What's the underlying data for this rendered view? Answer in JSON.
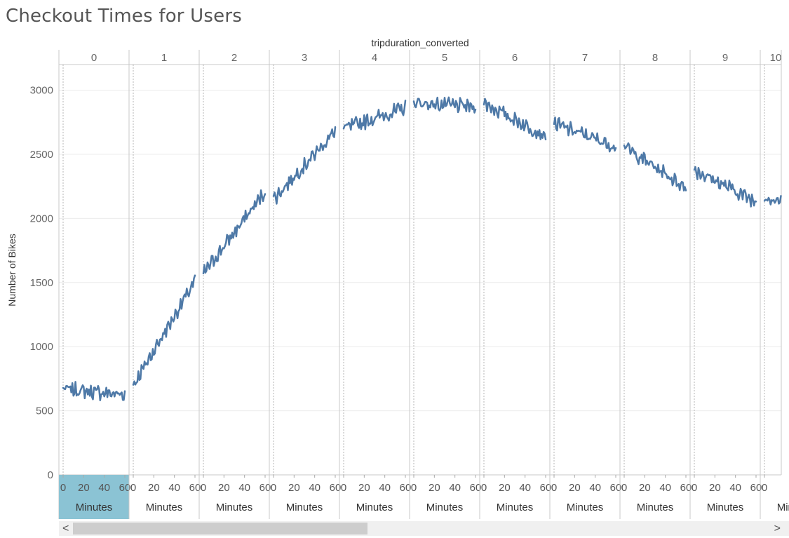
{
  "title": "Checkout Times for Users",
  "chart_data": {
    "type": "line",
    "title": "Checkout Times for Users",
    "column_header": "tripduration_converted",
    "panels": [
      "0",
      "1",
      "2",
      "3",
      "4",
      "5",
      "6",
      "7",
      "8",
      "9",
      "10"
    ],
    "xlabel": "Minutes",
    "x_ticks": [
      0,
      20,
      40,
      60
    ],
    "ylabel": "Number of Bikes",
    "y_ticks": [
      0,
      500,
      1000,
      1500,
      2000,
      2500,
      3000
    ],
    "ylim": [
      0,
      3200
    ],
    "x_range_per_panel": [
      0,
      60
    ],
    "series_color": "#4e79a7",
    "selected_panel": "0",
    "selected_color": "#8bc3d4",
    "series": [
      {
        "panel": "0",
        "start": 670,
        "end": 625
      },
      {
        "panel": "1",
        "start": 700,
        "end": 1510
      },
      {
        "panel": "2",
        "start": 1570,
        "end": 2210
      },
      {
        "panel": "3",
        "start": 2150,
        "end": 2680
      },
      {
        "panel": "4",
        "start": 2700,
        "end": 2860
      },
      {
        "panel": "5",
        "start": 2900,
        "end": 2870
      },
      {
        "panel": "6",
        "start": 2900,
        "end": 2640
      },
      {
        "panel": "7",
        "start": 2740,
        "end": 2560
      },
      {
        "panel": "8",
        "start": 2560,
        "end": 2240
      },
      {
        "panel": "9",
        "start": 2380,
        "end": 2130
      },
      {
        "panel": "10",
        "start": 2170,
        "end": 2050
      }
    ],
    "grid": true,
    "legend": "none"
  },
  "scrollbar": {
    "left_arrow": "<",
    "right_arrow": ">"
  }
}
